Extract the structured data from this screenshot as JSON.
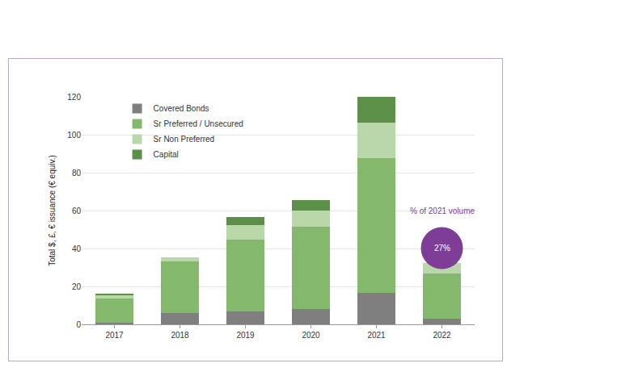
{
  "chart_data": {
    "type": "bar",
    "stacked": true,
    "categories": [
      "2017",
      "2018",
      "2019",
      "2020",
      "2021",
      "2022"
    ],
    "series": [
      {
        "name": "Covered Bonds",
        "color": "#7f7f7f",
        "values": [
          1,
          6,
          7,
          8,
          16.5,
          3
        ]
      },
      {
        "name": "Sr Preferred / Unsecured",
        "color": "#84b96d",
        "values": [
          12.5,
          27,
          37.5,
          43.5,
          71,
          24
        ]
      },
      {
        "name": "Sr Non Preferred",
        "color": "#bad7a9",
        "values": [
          2,
          2.5,
          8,
          8.5,
          19,
          5.5
        ]
      },
      {
        "name": "Capital",
        "color": "#5c8f48",
        "values": [
          0.5,
          0,
          4,
          5.5,
          13.5,
          0
        ]
      }
    ],
    "ylabel": "Total $, £, € issuance (€ equiv.)",
    "ylim": [
      0,
      120
    ],
    "yticks": [
      0,
      20,
      40,
      60,
      80,
      100,
      120
    ],
    "grid": true,
    "legend": "top left",
    "annotations": [
      {
        "text": "% of 2021 volume"
      },
      {
        "text": "27%"
      }
    ]
  }
}
